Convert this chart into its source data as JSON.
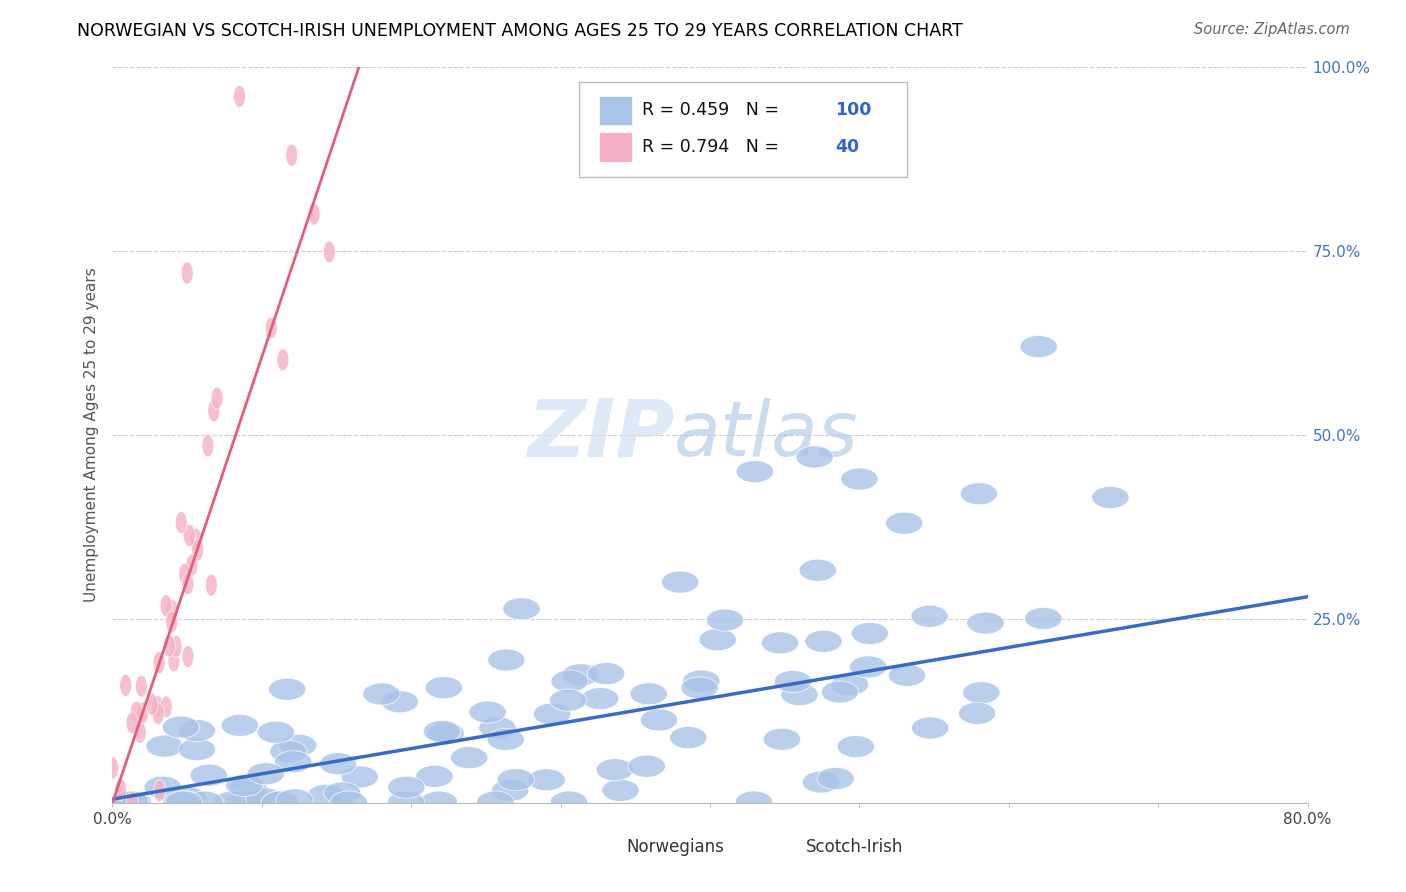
{
  "title": "NORWEGIAN VS SCOTCH-IRISH UNEMPLOYMENT AMONG AGES 25 TO 29 YEARS CORRELATION CHART",
  "source": "Source: ZipAtlas.com",
  "ylabel": "Unemployment Among Ages 25 to 29 years",
  "xmin": 0.0,
  "xmax": 0.8,
  "ymin": 0.0,
  "ymax": 1.0,
  "norwegian_R": 0.459,
  "norwegian_N": 100,
  "scotch_irish_R": 0.794,
  "scotch_irish_N": 40,
  "norwegian_color": "#a8c4e8",
  "scotch_irish_color": "#f5b0c5",
  "norwegian_line_color": "#3a6bc4",
  "scotch_irish_line_color": "#e0607a",
  "watermark_zip": "ZIP",
  "watermark_atlas": "atlas",
  "watermark_color_zip": "#c8d8f0",
  "watermark_color_atlas": "#a0b8d8",
  "background_color": "#ffffff",
  "grid_color": "#cccccc",
  "legend_label_norwegian": "Norwegians",
  "legend_label_scotch_irish": "Scotch-Irish",
  "ytick_color": "#4472c4",
  "nor_line_x0": 0.0,
  "nor_line_y0": 0.005,
  "nor_line_x1": 0.8,
  "nor_line_y1": 0.28,
  "sc_line_x0": 0.0,
  "sc_line_y0": 0.0,
  "sc_line_x1": 0.165,
  "sc_line_y1": 1.0
}
